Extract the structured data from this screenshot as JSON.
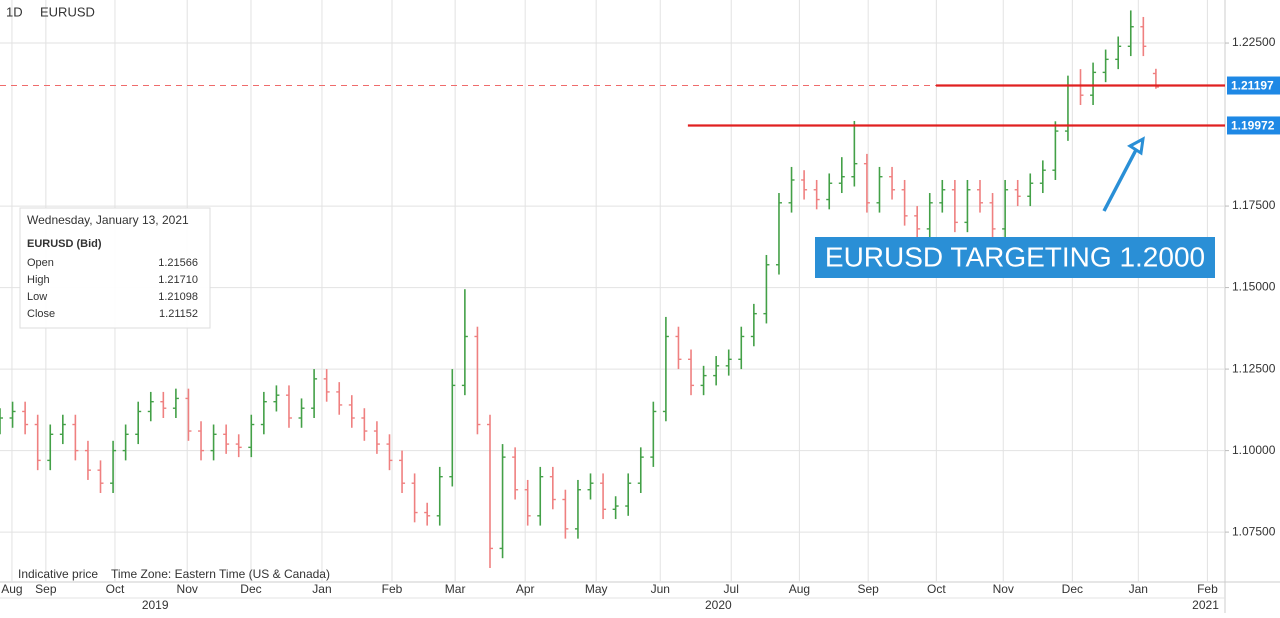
{
  "chart_data": {
    "type": "ohlc",
    "interval": "1D",
    "symbol": "EURUSD",
    "x": [
      0,
      4,
      8,
      12,
      16,
      20,
      24,
      28,
      32,
      36,
      40,
      44,
      48,
      52,
      56,
      60,
      64,
      68,
      72,
      76,
      80,
      84,
      88,
      92,
      96,
      100,
      104,
      108,
      112,
      116,
      120,
      124,
      128,
      132,
      136,
      140,
      144,
      148,
      152,
      156,
      160,
      164,
      168,
      172,
      176,
      180,
      184,
      188,
      192,
      196,
      200,
      204,
      208,
      212,
      216,
      220,
      224,
      228,
      232,
      236,
      240,
      244,
      248,
      252,
      256,
      260,
      264,
      268,
      272,
      276,
      280,
      284,
      288,
      292,
      296,
      300,
      304,
      308,
      312,
      316,
      320,
      324,
      328,
      332,
      336,
      340,
      344,
      348,
      352,
      356,
      360,
      364,
      368
    ],
    "open": [
      1.108,
      1.11,
      1.112,
      1.108,
      1.097,
      1.105,
      1.108,
      1.1,
      1.094,
      1.09,
      1.1,
      1.105,
      1.112,
      1.115,
      1.113,
      1.116,
      1.106,
      1.1,
      1.105,
      1.102,
      1.101,
      1.108,
      1.115,
      1.117,
      1.11,
      1.113,
      1.122,
      1.118,
      1.114,
      1.11,
      1.106,
      1.102,
      1.097,
      1.09,
      1.081,
      1.08,
      1.092,
      1.12,
      1.135,
      1.108,
      1.07,
      1.098,
      1.088,
      1.08,
      1.092,
      1.085,
      1.076,
      1.088,
      1.09,
      1.082,
      1.083,
      1.09,
      1.098,
      1.112,
      1.135,
      1.128,
      1.12,
      1.123,
      1.126,
      1.128,
      1.135,
      1.142,
      1.157,
      1.176,
      1.183,
      1.18,
      1.177,
      1.182,
      1.184,
      1.188,
      1.176,
      1.184,
      1.18,
      1.172,
      1.168,
      1.176,
      1.18,
      1.17,
      1.18,
      1.176,
      1.168,
      1.18,
      1.178,
      1.182,
      1.186,
      1.198,
      1.212,
      1.209,
      1.216,
      1.22,
      1.224,
      1.23,
      1.21566
    ],
    "high": [
      1.113,
      1.115,
      1.115,
      1.111,
      1.108,
      1.111,
      1.111,
      1.103,
      1.097,
      1.103,
      1.108,
      1.115,
      1.118,
      1.118,
      1.119,
      1.119,
      1.109,
      1.108,
      1.108,
      1.105,
      1.111,
      1.118,
      1.12,
      1.12,
      1.116,
      1.125,
      1.125,
      1.121,
      1.117,
      1.113,
      1.109,
      1.105,
      1.1,
      1.093,
      1.084,
      1.095,
      1.125,
      1.1495,
      1.138,
      1.111,
      1.102,
      1.101,
      1.091,
      1.095,
      1.095,
      1.088,
      1.091,
      1.093,
      1.093,
      1.086,
      1.093,
      1.101,
      1.115,
      1.141,
      1.138,
      1.131,
      1.126,
      1.129,
      1.131,
      1.138,
      1.145,
      1.16,
      1.179,
      1.187,
      1.186,
      1.183,
      1.185,
      1.19,
      1.2011,
      1.191,
      1.187,
      1.187,
      1.183,
      1.175,
      1.179,
      1.183,
      1.183,
      1.183,
      1.183,
      1.179,
      1.183,
      1.183,
      1.185,
      1.189,
      1.201,
      1.215,
      1.217,
      1.219,
      1.223,
      1.227,
      1.235,
      1.233,
      1.2171
    ],
    "low": [
      1.105,
      1.107,
      1.105,
      1.094,
      1.094,
      1.102,
      1.097,
      1.091,
      1.087,
      1.087,
      1.097,
      1.102,
      1.109,
      1.11,
      1.11,
      1.103,
      1.097,
      1.097,
      1.099,
      1.098,
      1.098,
      1.105,
      1.112,
      1.107,
      1.107,
      1.11,
      1.115,
      1.111,
      1.107,
      1.103,
      1.099,
      1.094,
      1.087,
      1.078,
      1.077,
      1.077,
      1.089,
      1.117,
      1.105,
      1.064,
      1.067,
      1.085,
      1.077,
      1.077,
      1.082,
      1.073,
      1.073,
      1.085,
      1.079,
      1.079,
      1.08,
      1.087,
      1.095,
      1.109,
      1.125,
      1.117,
      1.117,
      1.12,
      1.123,
      1.125,
      1.132,
      1.139,
      1.154,
      1.173,
      1.177,
      1.174,
      1.174,
      1.179,
      1.181,
      1.173,
      1.173,
      1.177,
      1.169,
      1.165,
      1.165,
      1.173,
      1.167,
      1.167,
      1.173,
      1.165,
      1.165,
      1.175,
      1.175,
      1.179,
      1.183,
      1.195,
      1.206,
      1.206,
      1.213,
      1.217,
      1.221,
      1.221,
      1.21098
    ],
    "close": [
      1.11,
      1.112,
      1.108,
      1.097,
      1.105,
      1.108,
      1.1,
      1.094,
      1.09,
      1.1,
      1.105,
      1.112,
      1.115,
      1.113,
      1.116,
      1.106,
      1.1,
      1.105,
      1.102,
      1.101,
      1.108,
      1.115,
      1.117,
      1.11,
      1.113,
      1.122,
      1.118,
      1.114,
      1.11,
      1.106,
      1.102,
      1.097,
      1.09,
      1.081,
      1.08,
      1.092,
      1.12,
      1.135,
      1.108,
      1.07,
      1.098,
      1.088,
      1.08,
      1.092,
      1.085,
      1.076,
      1.088,
      1.09,
      1.082,
      1.083,
      1.09,
      1.098,
      1.112,
      1.135,
      1.128,
      1.12,
      1.123,
      1.126,
      1.128,
      1.135,
      1.142,
      1.157,
      1.176,
      1.183,
      1.18,
      1.177,
      1.182,
      1.184,
      1.188,
      1.176,
      1.184,
      1.18,
      1.172,
      1.168,
      1.176,
      1.18,
      1.17,
      1.18,
      1.176,
      1.168,
      1.18,
      1.178,
      1.182,
      1.186,
      1.198,
      1.212,
      1.209,
      1.216,
      1.22,
      1.224,
      1.23,
      1.224,
      1.21152
    ],
    "up_color": "#43a047",
    "down_color": "#ef8080",
    "xlim": [
      0,
      390
    ],
    "xticks": [
      {
        "value": 3.8,
        "label": "Aug"
      },
      {
        "value": 14.6,
        "label": "Sep"
      },
      {
        "value": 36.6,
        "label": "Oct"
      },
      {
        "value": 59.6,
        "label": "Nov"
      },
      {
        "value": 79.9,
        "label": "Dec"
      },
      {
        "value": 102.5,
        "label": "Jan"
      },
      {
        "value": 124.8,
        "label": "Feb"
      },
      {
        "value": 144.9,
        "label": "Mar"
      },
      {
        "value": 167.2,
        "label": "Apr"
      },
      {
        "value": 189.8,
        "label": "May"
      },
      {
        "value": 210.2,
        "label": "Jun"
      },
      {
        "value": 232.8,
        "label": "Jul"
      },
      {
        "value": 254.5,
        "label": "Aug"
      },
      {
        "value": 276.4,
        "label": "Sep"
      },
      {
        "value": 298.1,
        "label": "Oct"
      },
      {
        "value": 319.4,
        "label": "Nov"
      },
      {
        "value": 341.4,
        "label": "Dec"
      },
      {
        "value": 362.4,
        "label": "Jan"
      },
      {
        "value": 384.4,
        "label": "Feb"
      }
    ],
    "year_labels": [
      {
        "value": 49.4,
        "label": "2019"
      },
      {
        "value": 228.7,
        "label": "2020"
      },
      {
        "value": 383.8,
        "label": "2021"
      }
    ],
    "ylim": [
      1.0597,
      1.2382
    ],
    "yticks": [
      {
        "value": 1.075,
        "label": "1.07500"
      },
      {
        "value": 1.1,
        "label": "1.10000"
      },
      {
        "value": 1.125,
        "label": "1.12500"
      },
      {
        "value": 1.15,
        "label": "1.15000"
      },
      {
        "value": 1.175,
        "label": "1.17500"
      },
      {
        "value": 1.225,
        "label": "1.22500"
      }
    ],
    "grid": true,
    "price_line": 1.21197,
    "levels": [
      {
        "value": 1.21197,
        "from_x": 298
      },
      {
        "value": 1.19972,
        "from_x": 219
      }
    ],
    "level_color": "#e02020",
    "annotation": "EURUSD TARGETING 1.2000",
    "tooltip": {
      "date": "Wednesday, January 13, 2021",
      "symbol": "EURUSD (Bid)",
      "rows": [
        [
          "Open",
          "1.21566"
        ],
        [
          "High",
          "1.21710"
        ],
        [
          "Low",
          "1.21098"
        ],
        [
          "Close",
          "1.21152"
        ]
      ]
    },
    "footer": [
      "Indicative price",
      "Time Zone: Eastern Time (US & Canada)"
    ]
  }
}
